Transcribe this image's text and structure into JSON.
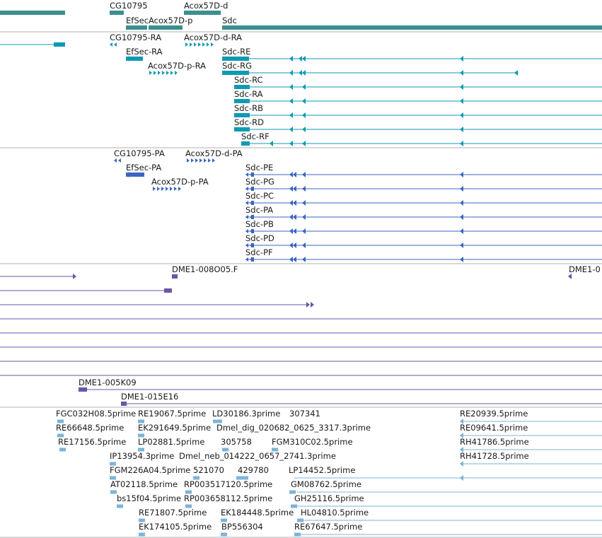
{
  "colors": {
    "gene": "#3a8f8f",
    "transcript": "#0f9ab4",
    "cds": "#3a66c2",
    "clone": "#6b55a8",
    "est": "#7db3d8",
    "separator": "#b0b0b0"
  },
  "tracks": {
    "genes": {
      "labels": [
        "CG10795",
        "EfSec",
        "Acox57D-p",
        "Acox57D-d",
        "Sdc"
      ]
    },
    "transcripts": {
      "labels": [
        "CG10795-RA",
        "Acox57D-d-RA",
        "EfSec-RA",
        "Sdc-RE",
        "Acox57D-p-RA",
        "Sdc-RG",
        "Sdc-RC",
        "Sdc-RA",
        "Sdc-RB",
        "Sdc-RD",
        "Sdc-RF"
      ]
    },
    "proteins": {
      "labels": [
        "CG10795-PA",
        "Acox57D-d-PA",
        "EfSec-PA",
        "Sdc-PE",
        "Acox57D-p-PA",
        "Sdc-PG",
        "Sdc-PC",
        "Sdc-PA",
        "Sdc-PB",
        "Sdc-PD",
        "Sdc-PF"
      ]
    },
    "clones": {
      "labels": [
        "DME1-008O05.F",
        "DME1-0",
        "DME1-005K09",
        "DME1-015E16"
      ]
    },
    "ests": {
      "labels": [
        "FGC032H08.5prime",
        "RE19067.5prime",
        "LD30186.3prime",
        "307341",
        "RE20939.5prime",
        "RE66648.5prime",
        "EK291649.5prime",
        "Dmel_dig_020682_0625_3317.3prime",
        "RE09641.5prime",
        "RE17156.5prime",
        "LP02881.5prime",
        "305758",
        "FGM310C02.5prime",
        "RH41786.5prime",
        "IP13954.3prime",
        "Dmel_neb_014222_0657_2741.3prime",
        "RH41728.5prime",
        "FGM226A04.5prime",
        "521070",
        "429780",
        "LP14452.5prime",
        "AT02118.5prime",
        "RP003517120.5prime",
        "GM08762.5prime",
        "bs15f04.5prime",
        "RP003658112.5prime",
        "GH25116.5prime",
        "RE71807.5prime",
        "EK184448.5prime",
        "HL04810.5prime",
        "EK174105.5prime",
        "BP556304",
        "RE67647.5prime"
      ]
    }
  }
}
